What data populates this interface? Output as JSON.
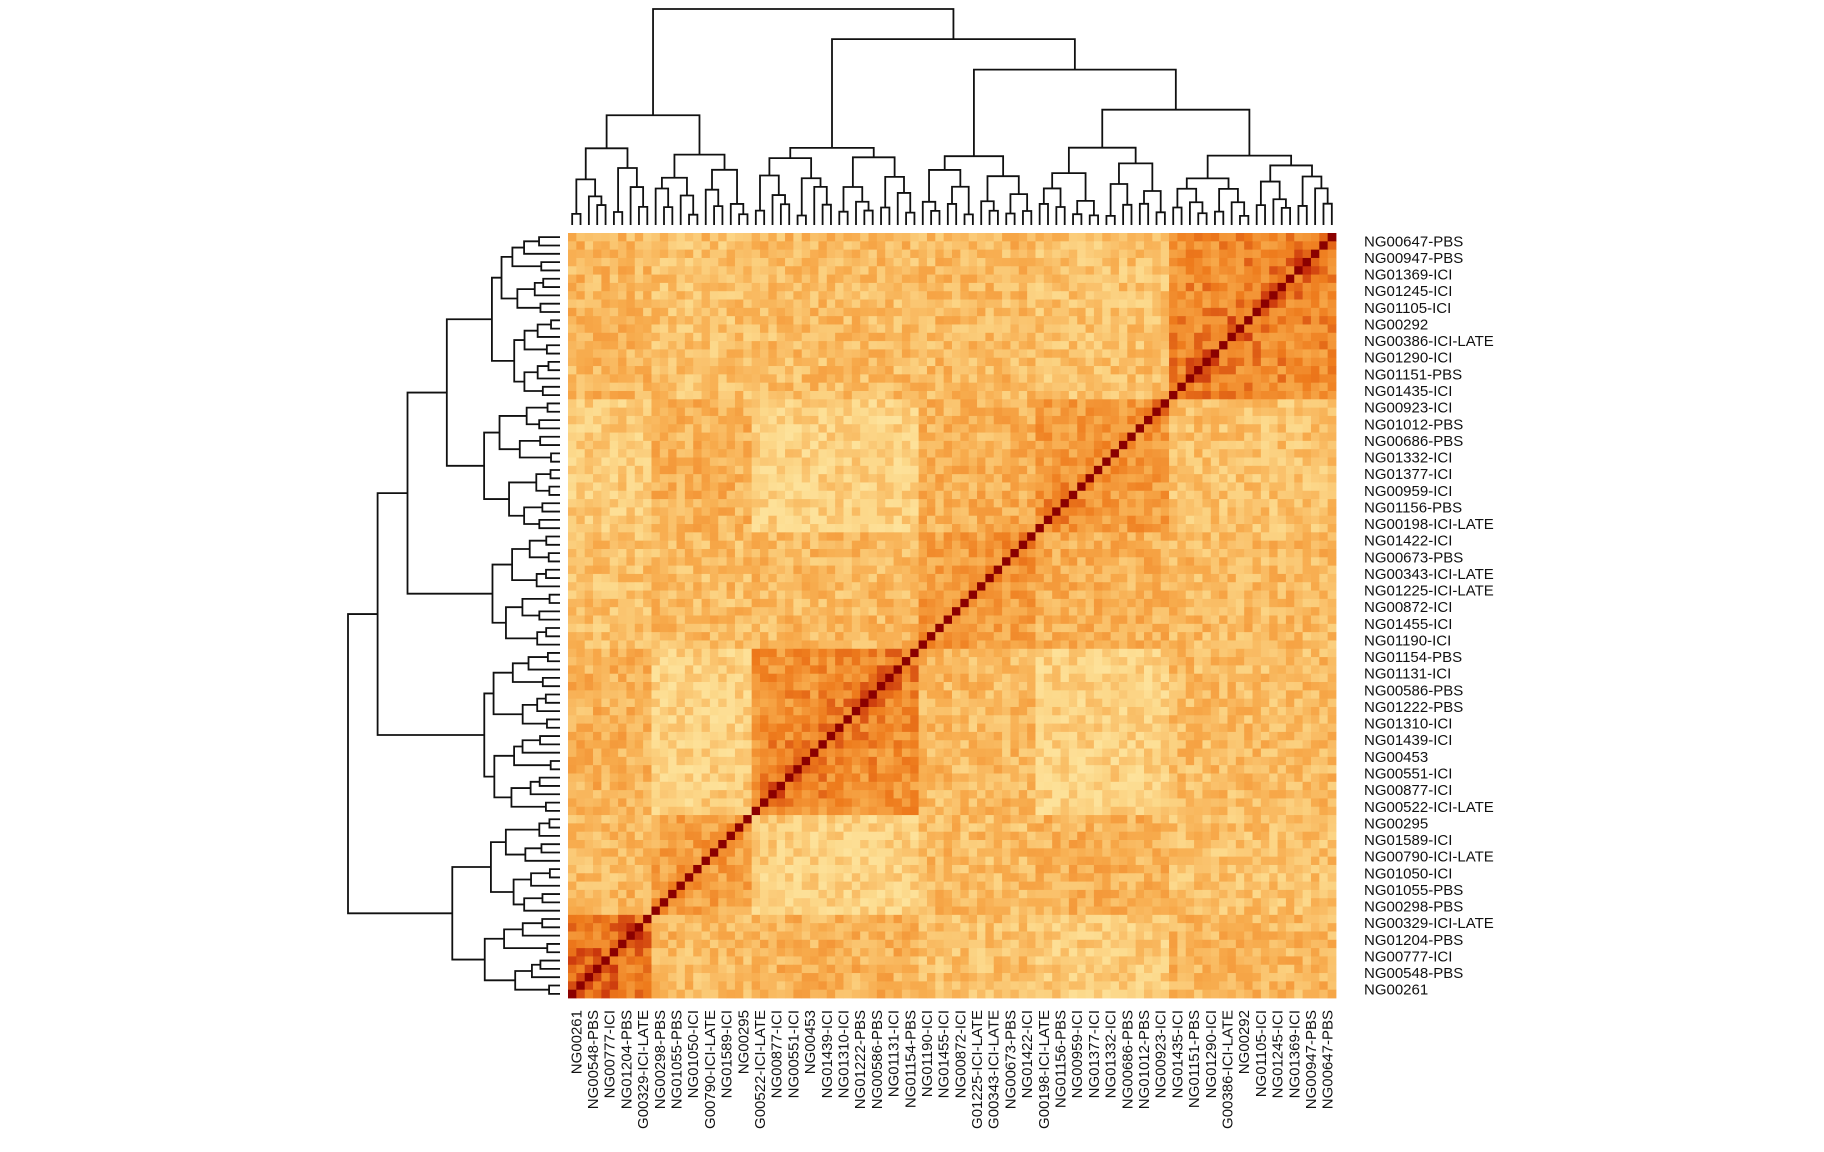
{
  "chart_data": {
    "type": "heatmap",
    "title": "",
    "xlabel": "",
    "ylabel": "",
    "clustered": true,
    "dendrograms": [
      "top",
      "left"
    ],
    "grid": false,
    "color_scale": {
      "low": "#fff4b8",
      "mid_low": "#fcd88a",
      "mid": "#f7a94a",
      "mid_high": "#ee7b1c",
      "high": "#c52d0a",
      "max": "#8b0000"
    },
    "value_range": [
      0,
      1
    ],
    "diagonal_value": 1.0,
    "row_labels_top_to_bottom": [
      "NG00647-PBS",
      "NG00947-PBS",
      "NG01369-ICI",
      "NG01245-ICI",
      "NG01105-ICI",
      "NG00292",
      "NG00386-ICI-LATE",
      "NG01290-ICI",
      "NG01151-PBS",
      "NG01435-ICI",
      "NG00923-ICI",
      "NG01012-PBS",
      "NG00686-PBS",
      "NG01332-ICI",
      "NG01377-ICI",
      "NG00959-ICI",
      "NG01156-PBS",
      "NG00198-ICI-LATE",
      "NG01422-ICI",
      "NG00673-PBS",
      "NG00343-ICI-LATE",
      "NG01225-ICI-LATE",
      "NG00872-ICI",
      "NG01455-ICI",
      "NG01190-ICI",
      "NG01154-PBS",
      "NG01131-ICI",
      "NG00586-PBS",
      "NG01222-PBS",
      "NG01310-ICI",
      "NG01439-ICI",
      "NG00453",
      "NG00551-ICI",
      "NG00877-ICI",
      "NG00522-ICI-LATE",
      "NG00295",
      "NG01589-ICI",
      "NG00790-ICI-LATE",
      "NG01050-ICI",
      "NG01055-PBS",
      "NG00298-PBS",
      "NG00329-ICI-LATE",
      "NG01204-PBS",
      "NG00777-ICI",
      "NG00548-PBS",
      "NG00261"
    ],
    "column_labels_left_to_right": [
      "NG00261",
      "NG00548-PBS",
      "NG00777-ICI",
      "NG01204-PBS",
      "G00329-ICI-LATE",
      "NG00298-PBS",
      "NG01055-PBS",
      "NG01050-ICI",
      "G00790-ICI-LATE",
      "NG01589-ICI",
      "NG00295",
      "G00522-ICI-LATE",
      "NG00877-ICI",
      "NG00551-ICI",
      "NG00453",
      "NG01439-ICI",
      "NG01310-ICI",
      "NG01222-PBS",
      "NG00586-PBS",
      "NG01131-ICI",
      "NG01154-PBS",
      "NG01190-ICI",
      "NG01455-ICI",
      "NG00872-ICI",
      "G01225-ICI-LATE",
      "G00343-ICI-LATE",
      "NG00673-PBS",
      "NG01422-ICI",
      "G00198-ICI-LATE",
      "NG01156-PBS",
      "NG00959-ICI",
      "NG01377-ICI",
      "NG01332-ICI",
      "NG00686-PBS",
      "NG01012-PBS",
      "NG00923-ICI",
      "NG01435-ICI",
      "NG01151-PBS",
      "NG01290-ICI",
      "G00386-ICI-LATE",
      "NG00292",
      "NG01105-ICI",
      "NG01245-ICI",
      "NG01369-ICI",
      "NG00947-PBS",
      "NG00647-PBS"
    ],
    "n_cells_per_axis": 92,
    "label_every_n_cells": 2,
    "blocks": [
      {
        "range": [
          0,
          10
        ],
        "value": 0.72
      },
      {
        "range": [
          10,
          22
        ],
        "value": 0.55
      },
      {
        "range": [
          22,
          42
        ],
        "value": 0.66
      },
      {
        "range": [
          42,
          56
        ],
        "value": 0.58
      },
      {
        "range": [
          56,
          72
        ],
        "value": 0.6
      },
      {
        "range": [
          72,
          92
        ],
        "value": 0.68
      }
    ]
  }
}
